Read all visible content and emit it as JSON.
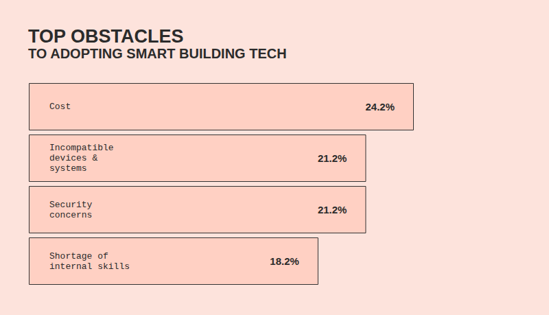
{
  "chart_data": {
    "type": "bar",
    "title": "TOP OBSTACLES",
    "subtitle": "TO ADOPTING SMART BUILDING TECH",
    "orientation": "horizontal",
    "categories": [
      "Cost",
      "Incompatible devices & systems",
      "Security concerns",
      "Shortage of internal skills"
    ],
    "values": [
      24.2,
      21.2,
      21.2,
      18.2
    ],
    "value_labels": [
      "24.2%",
      "21.2%",
      "21.2%",
      "18.2%"
    ],
    "color": "#ffd0c3",
    "xlim": [
      0,
      24.2
    ],
    "data_labels": true,
    "tick_labels": false
  }
}
